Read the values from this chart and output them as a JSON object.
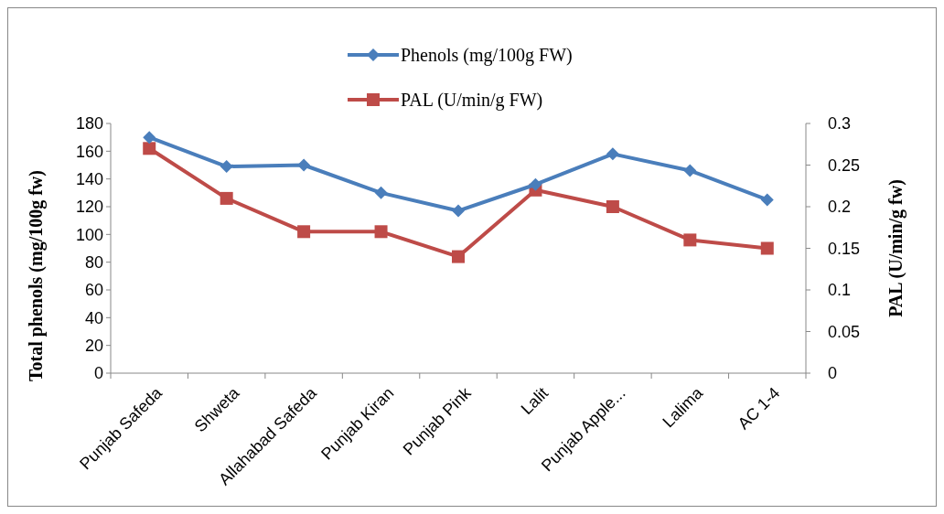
{
  "chart_data": {
    "type": "line",
    "ylabel": "Total phenols (mg/100g fw)",
    "y2label": "PAL (U/min/g fw)",
    "categories": [
      "Punjab Safeda",
      "Shweta",
      "Allahabad Safeda",
      "Punjab Kiran",
      "Punjab Pink",
      "Lalit",
      "Punjab Apple...",
      "Lalima",
      "AC 1-4"
    ],
    "series": [
      {
        "name": "Phenols (mg/100g FW)",
        "color": "#4a7ebb",
        "marker": "diamond",
        "values": [
          170,
          149,
          150,
          130,
          117,
          136,
          158,
          146,
          125
        ]
      },
      {
        "name": "PAL  (U/min/g FW)",
        "color": "#be4b48",
        "marker": "square",
        "axis": "y2",
        "values": [
          0.27,
          0.21,
          0.17,
          0.17,
          0.14,
          0.22,
          0.2,
          0.16,
          0.15
        ]
      }
    ],
    "ylim": [
      0,
      180
    ],
    "yticks": [
      0,
      20,
      40,
      60,
      80,
      100,
      120,
      140,
      160,
      180
    ],
    "y2lim": [
      0,
      0.3
    ],
    "y2ticks": [
      0,
      0.05,
      0.1,
      0.15,
      0.2,
      0.25,
      0.3
    ],
    "legend": "top",
    "grid": false
  }
}
